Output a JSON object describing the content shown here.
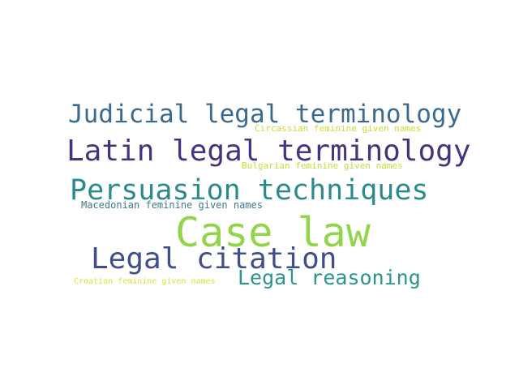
{
  "word_cloud": {
    "words": [
      {
        "id": "judicial",
        "text": "Judicial legal terminology",
        "color": "#3b6a8f"
      },
      {
        "id": "circassian",
        "text": "Circassian feminine given names",
        "color": "#c8dd3a"
      },
      {
        "id": "latin",
        "text": "Latin legal terminology",
        "color": "#46337e"
      },
      {
        "id": "bulgarian",
        "text": "Bulgarian feminine given names",
        "color": "#c2dd3c"
      },
      {
        "id": "persuasion",
        "text": "Persuasion techniques",
        "color": "#2a8a8c"
      },
      {
        "id": "macedonian",
        "text": "Macedonian feminine given names",
        "color": "#3d7a8e"
      },
      {
        "id": "caselaw",
        "text": "Case law",
        "color": "#92d44a"
      },
      {
        "id": "citation",
        "text": "Legal citation",
        "color": "#404f89"
      },
      {
        "id": "reasoning",
        "text": "Legal reasoning",
        "color": "#2b9490"
      },
      {
        "id": "croatian",
        "text": "Croatian feminine given names",
        "color": "#d6e43a"
      }
    ]
  }
}
